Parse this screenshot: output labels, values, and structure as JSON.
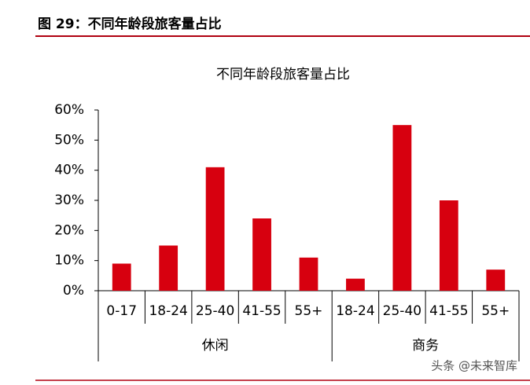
{
  "header": {
    "title": "图 29：不同年龄段旅客量占比"
  },
  "chart_data": {
    "type": "bar",
    "title": "不同年龄段旅客量占比",
    "color": "#d7000f",
    "groups": [
      {
        "name": "休闲",
        "categories": [
          "0-17",
          "18-24",
          "25-40",
          "41-55",
          "55+"
        ],
        "values": [
          9,
          15,
          41,
          24,
          11
        ]
      },
      {
        "name": "商务",
        "categories": [
          "18-24",
          "25-40",
          "41-55",
          "55+"
        ],
        "values": [
          4,
          55,
          30,
          7
        ]
      }
    ],
    "ylim": [
      0,
      60
    ],
    "yticks": [
      {
        "value": 0,
        "label": "0%"
      },
      {
        "value": 10,
        "label": "10%"
      },
      {
        "value": 20,
        "label": "20%"
      },
      {
        "value": 30,
        "label": "30%"
      },
      {
        "value": 40,
        "label": "40%"
      },
      {
        "value": 50,
        "label": "50%"
      },
      {
        "value": 60,
        "label": "60%"
      }
    ]
  },
  "watermark": "头条 @未来智库"
}
